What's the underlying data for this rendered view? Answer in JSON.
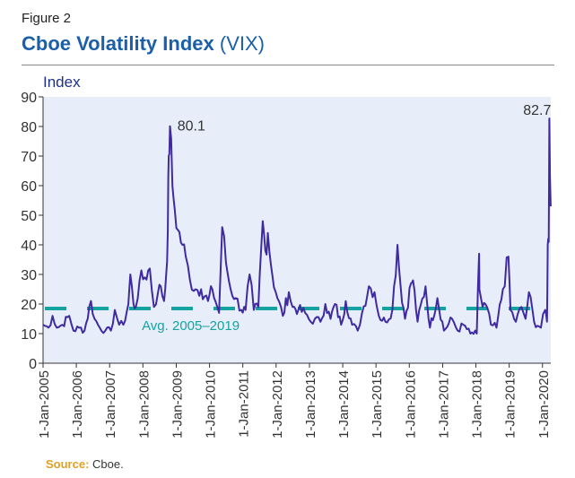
{
  "figure_label": "Figure 2",
  "title_bold": "Cboe Volatility Index",
  "title_suffix": "(VIX)",
  "source_label": "Source:",
  "source_text": "Cboe.",
  "colors": {
    "title": "#1a5fa8",
    "series": "#3f2aa0",
    "average": "#14a3a0",
    "plot_background": "#e7eefa",
    "source_label": "#e0a020"
  },
  "chart_data": {
    "type": "line",
    "title": "Cboe Volatility Index (VIX)",
    "ylabel": "Index",
    "xlabel": "",
    "ylim": [
      0,
      90
    ],
    "xlim": [
      "2005-01-01",
      "2020-04-01"
    ],
    "yticks": [
      0,
      10,
      20,
      30,
      40,
      50,
      60,
      70,
      80,
      90
    ],
    "xticks": [
      "1-Jan-2005",
      "1-Jan-2006",
      "1-Jan-2007",
      "1-Jan-2008",
      "1-Jan-2009",
      "1-Jan-2010",
      "1-Jan-2011",
      "1-Jan-2012",
      "1-Jan-2013",
      "1-Jan-2014",
      "1-Jan-2015",
      "1-Jan-2016",
      "1-Jan-2017",
      "1-Jan-2018",
      "1-Jan-2019",
      "1-Jan-2020"
    ],
    "grid": false,
    "series": [
      {
        "x": [
          "2005-01-01",
          "2005-03-01",
          "2005-04-15",
          "2005-06-01",
          "2005-08-01",
          "2005-10-15",
          "2005-12-01",
          "2006-02-01",
          "2006-04-01",
          "2006-06-10",
          "2006-07-20",
          "2006-09-15",
          "2006-11-15",
          "2007-01-15",
          "2007-02-27",
          "2007-04-15",
          "2007-06-01",
          "2007-07-26",
          "2007-08-16",
          "2007-09-20",
          "2007-10-15",
          "2007-11-26",
          "2008-01-22",
          "2008-03-17",
          "2008-05-01",
          "2008-06-15",
          "2008-07-15",
          "2008-08-20",
          "2008-09-15",
          "2008-10-01",
          "2008-10-10",
          "2008-10-24",
          "2008-11-20",
          "2008-12-15",
          "2009-01-20",
          "2009-03-09",
          "2009-04-15",
          "2009-06-01",
          "2009-08-01",
          "2009-10-01",
          "2009-12-15",
          "2010-02-01",
          "2010-04-15",
          "2010-05-20",
          "2010-06-30",
          "2010-08-20",
          "2010-10-15",
          "2010-12-15",
          "2011-02-01",
          "2011-03-16",
          "2011-05-01",
          "2011-06-20",
          "2011-08-08",
          "2011-09-05",
          "2011-10-03",
          "2011-11-20",
          "2012-01-15",
          "2012-03-15",
          "2012-05-20",
          "2012-06-30",
          "2012-09-01",
          "2012-11-15",
          "2013-01-15",
          "2013-03-01",
          "2013-05-01",
          "2013-06-24",
          "2013-08-20",
          "2013-10-08",
          "2013-12-15",
          "2014-02-03",
          "2014-04-15",
          "2014-06-15",
          "2014-08-01",
          "2014-10-15",
          "2014-12-16",
          "2015-02-01",
          "2015-04-15",
          "2015-06-29",
          "2015-08-24",
          "2015-09-28",
          "2015-11-15",
          "2016-01-20",
          "2016-02-11",
          "2016-04-01",
          "2016-06-27",
          "2016-08-15",
          "2016-11-04",
          "2017-01-15",
          "2017-04-15",
          "2017-06-15",
          "2017-08-15",
          "2017-11-01",
          "2018-01-10",
          "2018-02-05",
          "2018-02-08",
          "2018-03-15",
          "2018-04-15",
          "2018-06-15",
          "2018-08-15",
          "2018-10-24",
          "2018-12-24",
          "2019-01-15",
          "2019-03-15",
          "2019-05-15",
          "2019-06-30",
          "2019-08-05",
          "2019-10-01",
          "2019-12-15",
          "2020-01-31",
          "2020-02-20",
          "2020-02-28",
          "2020-03-09",
          "2020-03-16",
          "2020-03-31"
        ],
        "y": [
          13,
          12,
          16,
          12,
          13,
          16,
          11,
          12,
          11,
          21,
          15,
          12,
          11,
          11,
          18,
          13,
          13,
          20,
          30,
          20,
          19,
          28,
          29,
          32,
          19,
          24,
          26,
          21,
          31,
          45,
          70,
          80.1,
          60,
          52,
          45,
          40,
          36,
          28,
          25,
          25,
          21,
          25,
          17,
          46,
          34,
          25,
          22,
          18,
          18,
          30,
          18,
          19,
          48,
          38,
          44,
          30,
          22,
          16,
          24,
          19,
          18,
          17,
          14,
          15,
          14,
          20,
          15,
          20,
          13,
          21,
          13,
          11,
          17,
          26,
          24,
          16,
          14,
          18,
          40,
          26,
          15,
          27,
          28,
          14,
          26,
          12,
          22,
          11,
          15,
          11,
          13,
          10,
          10,
          37,
          25,
          19,
          20,
          13,
          12,
          25,
          36,
          18,
          14,
          19,
          15,
          24,
          14,
          12,
          18,
          14,
          40,
          41,
          82.7,
          53
        ]
      },
      {
        "name": "Avg. 2005–2019",
        "y": [
          18.5,
          18.5
        ]
      }
    ],
    "annotations": [
      "80.1",
      "82.7",
      "Avg. 2005–2019"
    ]
  }
}
